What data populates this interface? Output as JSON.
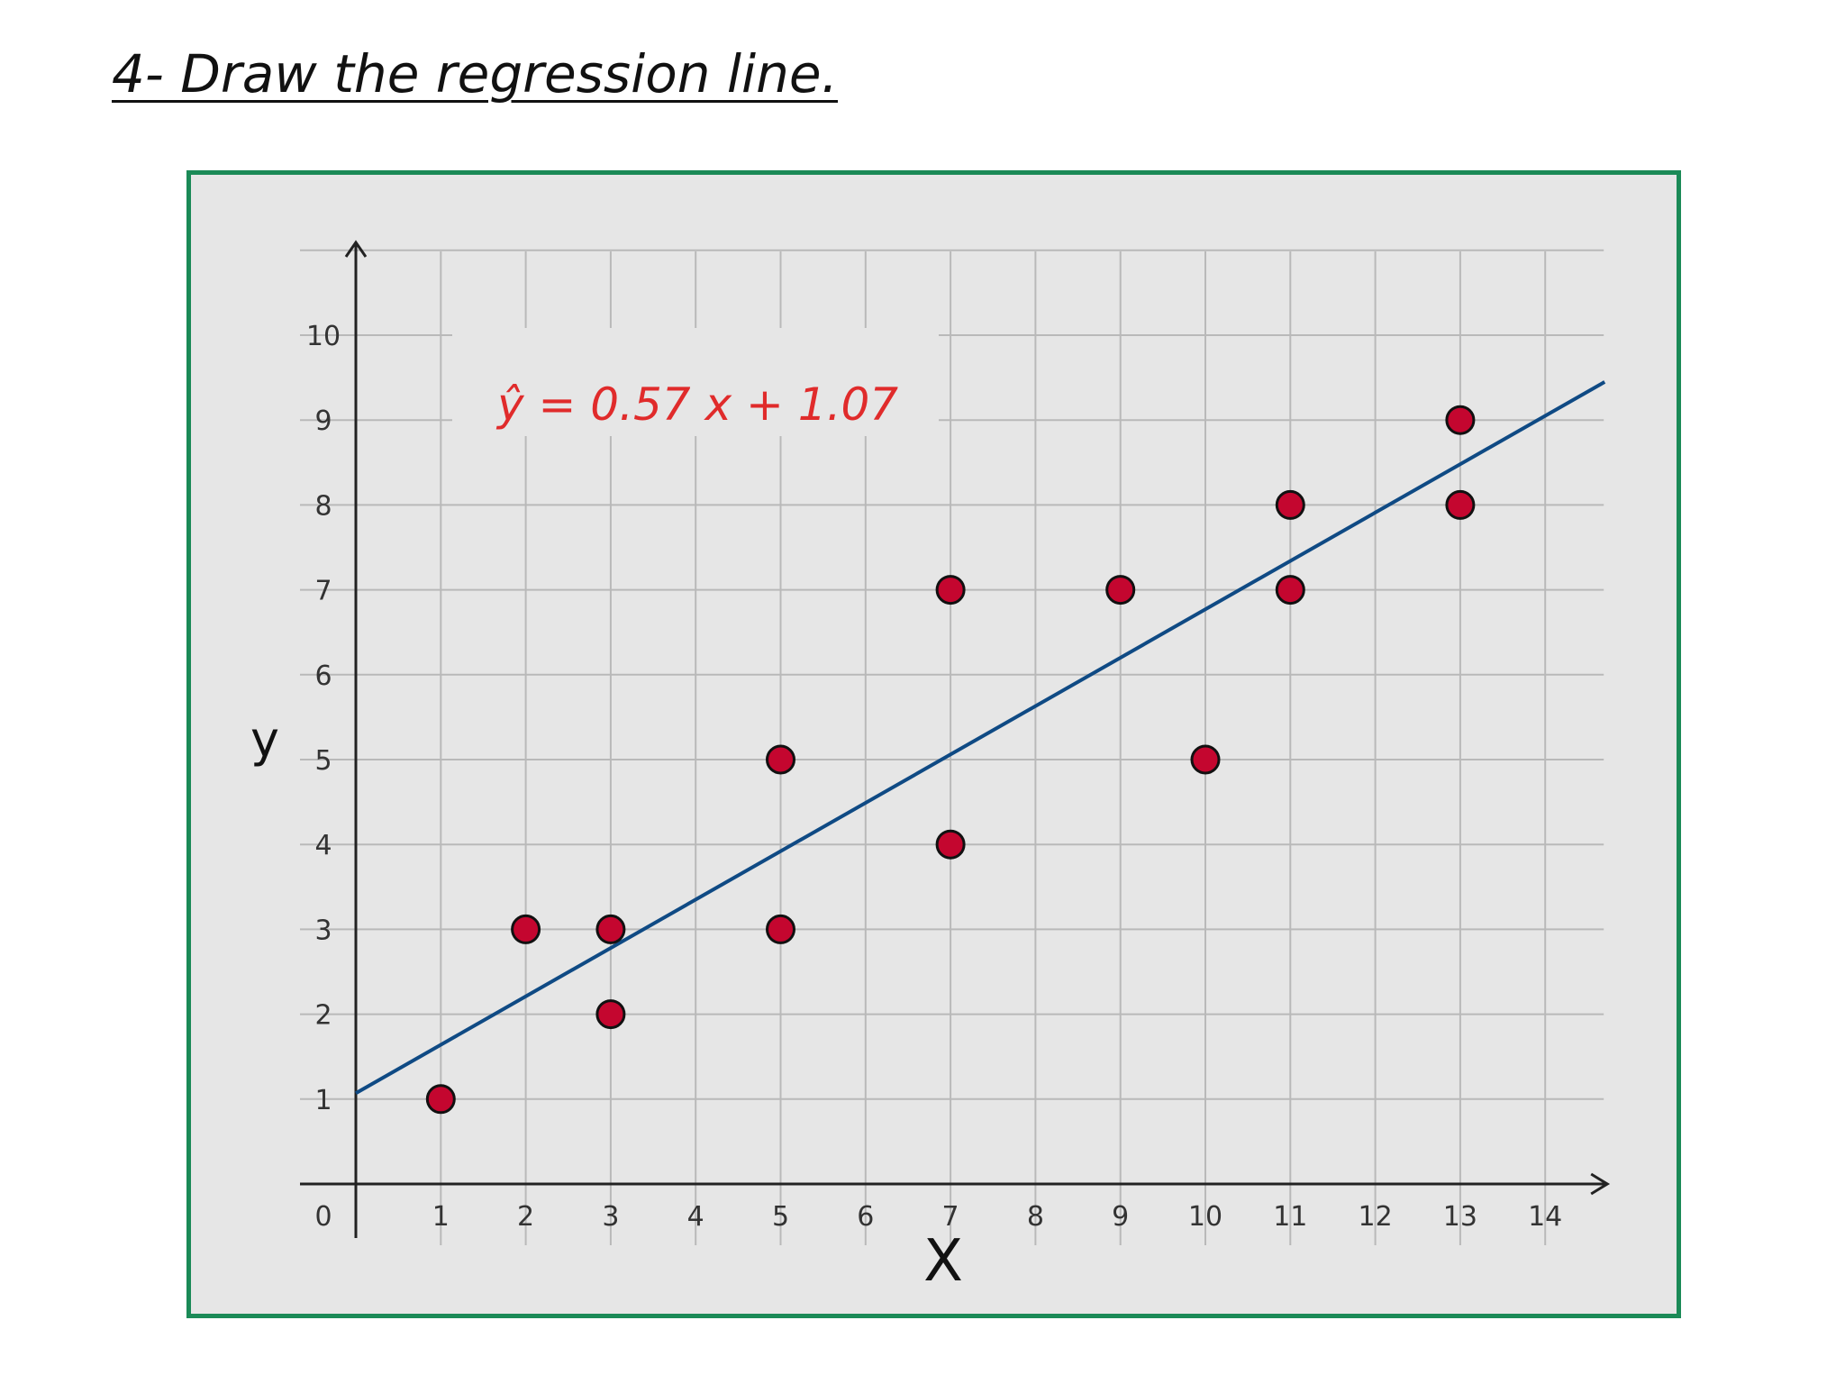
{
  "slide": {
    "title": "4- Draw the regression line."
  },
  "colors": {
    "frame": "#1b8a57",
    "panel": "#e6e6e6",
    "grid": "#b9b9b9",
    "line": "#0f4a84",
    "point_fill": "#c4062f",
    "point_stroke": "#111111",
    "equation": "#e02b2b"
  },
  "chart_data": {
    "type": "scatter",
    "title": "",
    "xlabel": "X",
    "ylabel": "y",
    "xlim": [
      0,
      14
    ],
    "ylim": [
      0,
      10
    ],
    "grid": true,
    "x_ticks": [
      "0",
      "1",
      "2",
      "3",
      "4",
      "5",
      "6",
      "7",
      "8",
      "9",
      "10",
      "11",
      "12",
      "13",
      "14"
    ],
    "y_ticks": [
      "1",
      "2",
      "3",
      "4",
      "5",
      "6",
      "7",
      "8",
      "9",
      "10"
    ],
    "points": [
      {
        "x": 1,
        "y": 1
      },
      {
        "x": 2,
        "y": 3
      },
      {
        "x": 3,
        "y": 3
      },
      {
        "x": 3,
        "y": 2
      },
      {
        "x": 5,
        "y": 5
      },
      {
        "x": 5,
        "y": 3
      },
      {
        "x": 7,
        "y": 7
      },
      {
        "x": 7,
        "y": 4
      },
      {
        "x": 9,
        "y": 7
      },
      {
        "x": 10,
        "y": 5
      },
      {
        "x": 11,
        "y": 8
      },
      {
        "x": 11,
        "y": 7
      },
      {
        "x": 13,
        "y": 9
      },
      {
        "x": 13,
        "y": 8
      }
    ],
    "regression": {
      "slope": 0.57,
      "intercept": 1.07,
      "equation": "ŷ = 0.57 x + 1.07"
    }
  }
}
